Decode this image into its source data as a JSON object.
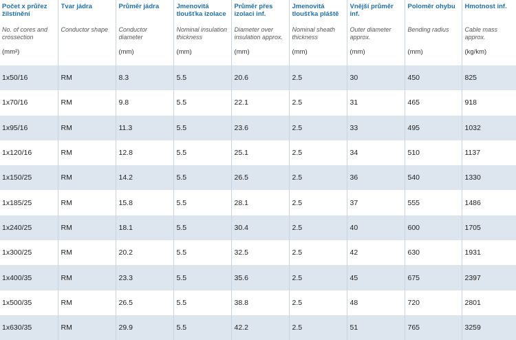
{
  "headers": [
    {
      "cz": "Počet x průřez žilstínění",
      "en": "No. of cores and crossection",
      "unit": "(mm²)"
    },
    {
      "cz": "Tvar jádra",
      "en": "Conductor shape",
      "unit": ""
    },
    {
      "cz": "Průměr jádra",
      "en": "Conductor diameter",
      "unit": "(mm)"
    },
    {
      "cz": "Jmenovitá tloušťka izolace",
      "en": "Nominal insulation thickness",
      "unit": "(mm)"
    },
    {
      "cz": "Průměr přes izolaci inf.",
      "en": "Diameter over insulation approx.",
      "unit": "(mm)"
    },
    {
      "cz": "Jmenovitá tloušťka pláště",
      "en": "Nominal sheath thickness",
      "unit": "(mm)"
    },
    {
      "cz": "Vnější průměr inf.",
      "en": "Outer diameter approx.",
      "unit": "(mm)"
    },
    {
      "cz": "Poloměr ohybu",
      "en": "Bending radius",
      "unit": "(mm)"
    },
    {
      "cz": "Hmotnost inf.",
      "en": "Cable mass approx.",
      "unit": "(kg/km)"
    }
  ],
  "rows": [
    [
      "1x50/16",
      "RM",
      "8.3",
      "5.5",
      "20.6",
      "2.5",
      "30",
      "450",
      "825"
    ],
    [
      "1x70/16",
      "RM",
      "9.8",
      "5.5",
      "22.1",
      "2.5",
      "31",
      "465",
      "918"
    ],
    [
      "1x95/16",
      "RM",
      "11.3",
      "5.5",
      "23.6",
      "2.5",
      "33",
      "495",
      "1032"
    ],
    [
      "1x120/16",
      "RM",
      "12.8",
      "5.5",
      "25.1",
      "2.5",
      "34",
      "510",
      "1137"
    ],
    [
      "1x150/25",
      "RM",
      "14.2",
      "5.5",
      "26.5",
      "2.5",
      "36",
      "540",
      "1330"
    ],
    [
      "1x185/25",
      "RM",
      "15.8",
      "5.5",
      "28.1",
      "2.5",
      "37",
      "555",
      "1486"
    ],
    [
      "1x240/25",
      "RM",
      "18.1",
      "5.5",
      "30.4",
      "2.5",
      "40",
      "600",
      "1705"
    ],
    [
      "1x300/25",
      "RM",
      "20.2",
      "5.5",
      "32.5",
      "2.5",
      "42",
      "630",
      "1931"
    ],
    [
      "1x400/35",
      "RM",
      "23.3",
      "5.5",
      "35.6",
      "2.5",
      "45",
      "675",
      "2397"
    ],
    [
      "1x500/35",
      "RM",
      "26.5",
      "5.5",
      "38.8",
      "2.5",
      "48",
      "720",
      "2801"
    ],
    [
      "1x630/35",
      "RM",
      "29.9",
      "5.5",
      "42.2",
      "2.5",
      "51",
      "765",
      "3259"
    ]
  ]
}
